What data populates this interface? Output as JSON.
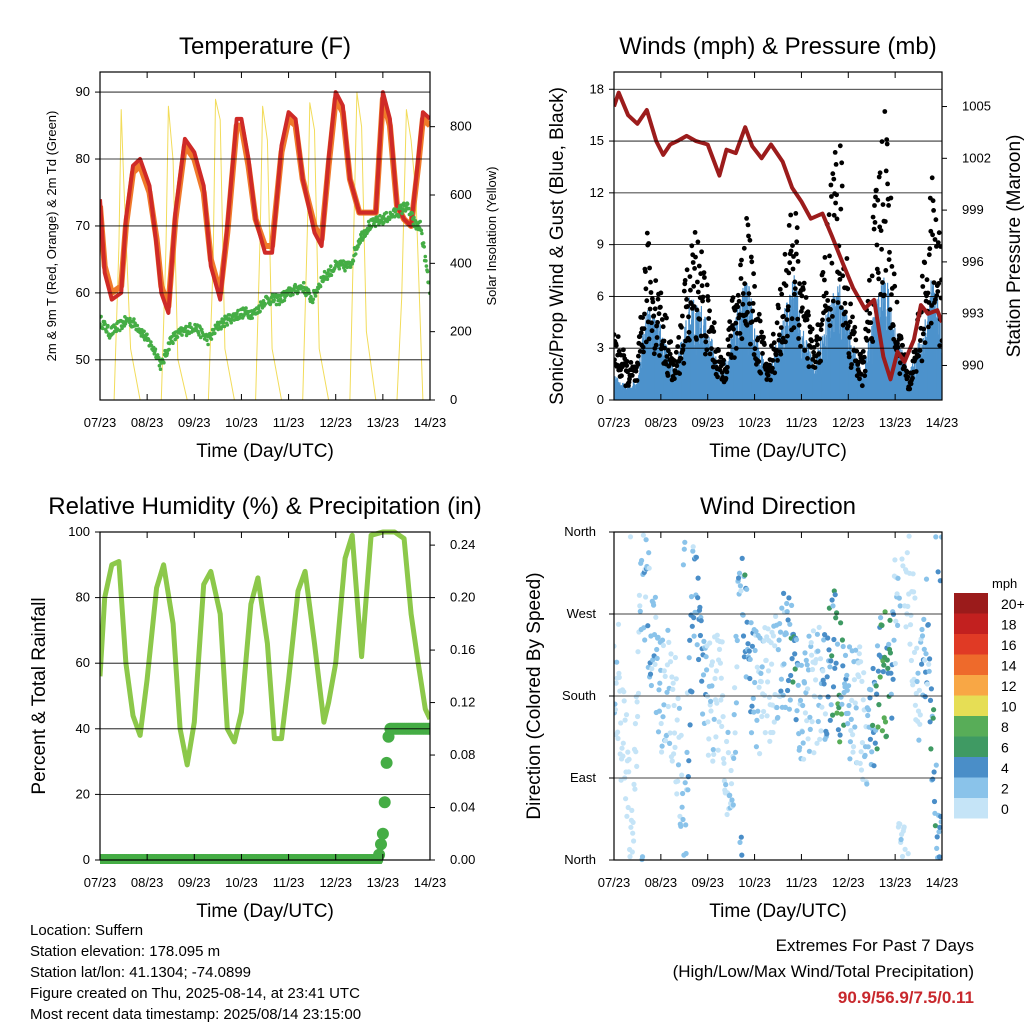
{
  "x_ticks": [
    "07/23",
    "08/23",
    "09/23",
    "10/23",
    "11/23",
    "12/23",
    "13/23",
    "14/23"
  ],
  "x_label": "Time (Day/UTC)",
  "colors": {
    "temp_2m": "#cf2a27",
    "temp_9m": "#f07a2a",
    "dewpoint": "#45ad45",
    "solar": "#f2dc5a",
    "wind": "#4d92cc",
    "gust": "#000000",
    "pressure": "#9c1c1c",
    "rh": "#8cc84a",
    "precip": "#45ad45"
  },
  "panels": {
    "temperature": {
      "title": "Temperature (F)",
      "ylabel_left": "2m & 9m T (Red, Orange) & 2m Td (Green)",
      "ylabel_right": "Solar Insolation (Yellow)",
      "left_ticks": [
        "50",
        "60",
        "70",
        "80",
        "90"
      ],
      "right_ticks": [
        "0",
        "200",
        "400",
        "600",
        "800"
      ]
    },
    "winds": {
      "title": "Winds (mph) & Pressure (mb)",
      "ylabel_left": "Sonic/Prop Wind & Gust (Blue, Black)",
      "ylabel_right": "Station Pressure (Maroon)",
      "left_ticks": [
        "0",
        "3",
        "6",
        "9",
        "12",
        "15",
        "18"
      ],
      "right_ticks": [
        "990",
        "993",
        "996",
        "999",
        "1002",
        "1005"
      ]
    },
    "humidity": {
      "title": "Relative Humidity (%) & Precipitation (in)",
      "ylabel_left": "Percent & Total Rainfall",
      "left_ticks": [
        "0",
        "20",
        "40",
        "60",
        "80",
        "100"
      ],
      "right_ticks": [
        "0.00",
        "0.04",
        "0.08",
        "0.12",
        "0.16",
        "0.20",
        "0.24"
      ]
    },
    "direction": {
      "title": "Wind Direction",
      "ylabel_left": "Direction (Colored By Speed)",
      "left_ticks": [
        "North",
        "East",
        "South",
        "West",
        "North"
      ]
    }
  },
  "legend": {
    "unit": "mph",
    "labels": [
      "0",
      "2",
      "4",
      "6",
      "8",
      "10",
      "12",
      "14",
      "16",
      "18",
      "20+"
    ],
    "colors": [
      "#c5e4f7",
      "#8ac3ea",
      "#4a8ec8",
      "#3f9a63",
      "#58ad58",
      "#e6de55",
      "#f8a745",
      "#ee6a2b",
      "#e03a25",
      "#c2201f",
      "#9b1b1b"
    ]
  },
  "info": {
    "location": "Location: Suffern",
    "elevation": "Station elevation: 178.095 m",
    "latlon": "Station lat/lon: 41.1304; -74.0899",
    "created": "Figure created on Thu, 2025-08-14, at 23:41 UTC",
    "recent": "Most recent data timestamp: 2025/08/14 23:15:00"
  },
  "extremes": {
    "line1": "Extremes For Past 7 Days",
    "line2": "(High/Low/Max Wind/Total Precipitation)",
    "values": "90.9/56.9/7.5/0.11"
  },
  "chart_data": [
    {
      "type": "line",
      "title": "Temperature (F)",
      "xlabel": "Time (Day/UTC)",
      "ylabel": "2m & 9m T (Red, Orange) & 2m Td (Green)",
      "ylim": [
        44,
        93
      ],
      "y2label": "Solar Insolation (Yellow)",
      "y2lim": [
        0,
        960
      ],
      "x_range_days": [
        7,
        14
      ],
      "series": [
        {
          "name": "2m T",
          "axis": "left",
          "x": [
            7.0,
            7.1,
            7.25,
            7.45,
            7.55,
            7.7,
            7.85,
            8.05,
            8.2,
            8.3,
            8.45,
            8.6,
            8.8,
            9.0,
            9.2,
            9.35,
            9.55,
            9.7,
            9.9,
            10.0,
            10.15,
            10.3,
            10.5,
            10.65,
            10.85,
            11.0,
            11.15,
            11.3,
            11.55,
            11.7,
            11.85,
            12.0,
            12.15,
            12.3,
            12.5,
            12.65,
            12.85,
            13.0,
            13.15,
            13.3,
            13.45,
            13.6,
            13.75,
            13.85,
            14.0
          ],
          "values": [
            74,
            63,
            59,
            60,
            71,
            79,
            80,
            76,
            67,
            60,
            57,
            72,
            83,
            81,
            76,
            64,
            59,
            70,
            86,
            86,
            80,
            71,
            66,
            66,
            82,
            87,
            86,
            77,
            69,
            67,
            80,
            90,
            88,
            77,
            72,
            72,
            72,
            90,
            86,
            73,
            71,
            70,
            80,
            87,
            86
          ]
        },
        {
          "name": "9m T",
          "axis": "left",
          "x": [
            7.0,
            7.1,
            7.25,
            7.45,
            7.55,
            7.7,
            7.85,
            8.05,
            8.2,
            8.3,
            8.45,
            8.6,
            8.8,
            9.0,
            9.2,
            9.35,
            9.55,
            9.7,
            9.9,
            10.0,
            10.15,
            10.3,
            10.5,
            10.65,
            10.85,
            11.0,
            11.15,
            11.3,
            11.55,
            11.7,
            11.85,
            12.0,
            12.15,
            12.3,
            12.5,
            12.65,
            12.85,
            13.0,
            13.15,
            13.3,
            13.45,
            13.6,
            13.75,
            13.85,
            14.0
          ],
          "values": [
            73,
            64,
            60,
            61,
            70,
            78,
            79,
            75,
            68,
            61,
            58,
            71,
            82,
            80,
            75,
            65,
            60,
            69,
            85,
            85,
            79,
            71,
            67,
            67,
            81,
            86,
            85,
            77,
            70,
            68,
            79,
            89,
            87,
            77,
            72,
            72,
            72,
            89,
            85,
            73,
            71,
            70,
            79,
            86,
            85
          ]
        },
        {
          "name": "2m Td",
          "axis": "left",
          "x": [
            7.0,
            7.2,
            7.4,
            7.6,
            7.8,
            8.0,
            8.2,
            8.3,
            8.5,
            8.7,
            9.0,
            9.3,
            9.5,
            9.7,
            10.0,
            10.3,
            10.5,
            10.8,
            11.0,
            11.3,
            11.5,
            11.7,
            12.0,
            12.3,
            12.5,
            12.7,
            13.0,
            13.3,
            13.5,
            13.7,
            13.8,
            14.0
          ],
          "values": [
            56,
            54,
            55,
            56,
            55,
            53,
            51,
            49,
            53,
            54,
            55,
            53,
            55,
            56,
            57,
            57,
            59,
            59,
            60,
            61,
            59,
            62,
            64,
            64,
            68,
            70,
            71,
            72,
            73,
            70,
            70,
            60
          ]
        },
        {
          "name": "Solar",
          "axis": "right",
          "x": [
            7.0,
            7.3,
            7.4,
            7.45,
            7.5,
            7.65,
            7.85,
            8.3,
            8.4,
            8.45,
            8.55,
            8.65,
            8.85,
            9.3,
            9.4,
            9.45,
            9.55,
            9.65,
            9.85,
            10.3,
            10.4,
            10.45,
            10.55,
            10.65,
            10.85,
            11.3,
            11.4,
            11.45,
            11.55,
            11.65,
            11.85,
            12.3,
            12.4,
            12.45,
            12.55,
            12.65,
            12.85,
            13.3,
            13.4,
            13.5,
            13.6,
            13.7,
            13.85,
            14.0
          ],
          "values": [
            0,
            0,
            450,
            850,
            650,
            150,
            0,
            0,
            450,
            860,
            700,
            120,
            0,
            0,
            400,
            880,
            820,
            150,
            0,
            0,
            500,
            860,
            760,
            150,
            0,
            0,
            500,
            870,
            790,
            150,
            0,
            0,
            600,
            900,
            800,
            200,
            0,
            0,
            300,
            850,
            760,
            600,
            0,
            0
          ]
        }
      ]
    },
    {
      "type": "scatter",
      "title": "Winds (mph) & Pressure (mb)",
      "xlabel": "Time (Day/UTC)",
      "ylabel": "Sonic/Prop Wind & Gust (Blue, Black)",
      "ylim": [
        0,
        19
      ],
      "y2label": "Station Pressure (Maroon)",
      "y2lim": [
        988,
        1007
      ],
      "series": [
        {
          "name": "Sonic/Prop Wind",
          "axis": "left",
          "x": [
            7.0,
            7.3,
            7.5,
            7.7,
            8.0,
            8.3,
            8.6,
            8.8,
            9.0,
            9.3,
            9.7,
            9.85,
            10.0,
            10.3,
            10.7,
            10.85,
            11.0,
            11.3,
            11.6,
            11.8,
            12.0,
            12.3,
            12.6,
            12.8,
            13.0,
            13.3,
            13.6,
            13.8,
            14.0
          ],
          "values": [
            1,
            0.5,
            1,
            4,
            3,
            1,
            4,
            4,
            3,
            1,
            4,
            5,
            3,
            1,
            4,
            5,
            3,
            1.5,
            4,
            5,
            3,
            1,
            4,
            5,
            3,
            1,
            3,
            5,
            3
          ]
        },
        {
          "name": "Gust",
          "axis": "left",
          "x": [
            7.0,
            7.3,
            7.5,
            7.7,
            8.0,
            8.3,
            8.6,
            8.8,
            9.0,
            9.3,
            9.7,
            9.85,
            10.0,
            10.3,
            10.7,
            10.85,
            11.0,
            11.3,
            11.6,
            11.8,
            12.0,
            12.3,
            12.6,
            12.8,
            13.0,
            13.3,
            13.6,
            13.8,
            14.0
          ],
          "values": [
            4,
            2,
            2,
            9,
            6,
            2,
            8,
            10,
            6,
            2,
            8,
            11,
            6,
            2,
            9,
            11,
            7,
            3,
            11,
            16,
            6,
            2,
            12,
            17,
            6,
            1,
            7,
            12,
            8
          ]
        },
        {
          "name": "Station Pressure",
          "axis": "right",
          "x": [
            7.0,
            7.1,
            7.3,
            7.5,
            7.7,
            7.9,
            8.05,
            8.2,
            8.35,
            8.55,
            8.75,
            9.0,
            9.25,
            9.4,
            9.6,
            9.8,
            9.95,
            10.15,
            10.35,
            10.6,
            10.8,
            11.0,
            11.2,
            11.45,
            11.65,
            11.9,
            12.1,
            12.35,
            12.55,
            12.75,
            12.9,
            13.05,
            13.2,
            13.4,
            13.55,
            13.7,
            13.9,
            14.0
          ],
          "values": [
            1005,
            1005.8,
            1004.5,
            1004,
            1004.8,
            1003,
            1002.2,
            1002.8,
            1003,
            1003.3,
            1003,
            1002.8,
            1001,
            1002.5,
            1002.3,
            1003.8,
            1002.7,
            1002,
            1002.8,
            1001.8,
            1000.3,
            999.5,
            998.5,
            998.8,
            997.5,
            995.8,
            994.5,
            993.3,
            993.8,
            990.5,
            989.2,
            990.8,
            990.2,
            991.5,
            993.5,
            993,
            993.2,
            992.5
          ]
        }
      ]
    },
    {
      "type": "line",
      "title": "Relative Humidity (%) & Precipitation (in)",
      "xlabel": "Time (Day/UTC)",
      "ylabel": "Percent & Total Rainfall",
      "ylim": [
        0,
        100
      ],
      "y2lim": [
        0,
        0.25
      ],
      "series": [
        {
          "name": "Relative Humidity",
          "axis": "left",
          "x": [
            7.0,
            7.1,
            7.25,
            7.4,
            7.55,
            7.7,
            7.85,
            8.0,
            8.2,
            8.35,
            8.55,
            8.7,
            8.85,
            9.0,
            9.2,
            9.35,
            9.55,
            9.7,
            9.85,
            10.0,
            10.2,
            10.35,
            10.55,
            10.7,
            10.85,
            11.0,
            11.2,
            11.35,
            11.55,
            11.75,
            11.85,
            12.0,
            12.2,
            12.35,
            12.55,
            12.75,
            13.0,
            13.25,
            13.45,
            13.6,
            13.75,
            13.9,
            14.0
          ],
          "values": [
            56,
            80,
            90,
            91,
            60,
            44,
            38,
            55,
            83,
            90,
            72,
            40,
            29,
            42,
            84,
            88,
            75,
            40,
            36,
            45,
            78,
            86,
            66,
            37,
            37,
            55,
            82,
            88,
            66,
            42,
            48,
            60,
            92,
            99,
            62,
            99,
            100,
            100,
            98,
            75,
            60,
            46,
            43
          ]
        },
        {
          "name": "Total Precipitation",
          "axis": "right",
          "x": [
            7.0,
            12.9,
            13.0,
            13.05,
            13.1,
            13.15,
            14.0
          ],
          "values": [
            0,
            0,
            0.02,
            0.05,
            0.09,
            0.1,
            0.1
          ]
        }
      ]
    },
    {
      "type": "scatter",
      "title": "Wind Direction",
      "xlabel": "Time (Day/UTC)",
      "ylabel": "Direction (Colored By Speed)",
      "ylim": [
        0,
        360
      ],
      "color_legend": {
        "unit": "mph",
        "labels": [
          "0",
          "2",
          "4",
          "6",
          "8",
          "10",
          "12",
          "14",
          "16",
          "18",
          "20+"
        ]
      },
      "series": [
        {
          "name": "Direction",
          "x": [
            7.1,
            7.2,
            7.4,
            7.6,
            7.8,
            8.0,
            8.1,
            8.3,
            8.5,
            8.7,
            8.9,
            9.1,
            9.3,
            9.5,
            9.7,
            9.9,
            10.1,
            10.3,
            10.5,
            10.7,
            10.9,
            11.1,
            11.3,
            11.5,
            11.7,
            11.9,
            12.1,
            12.3,
            12.5,
            12.7,
            12.9,
            13.1,
            13.3,
            13.5,
            13.7,
            13.9
          ],
          "values": [
            190,
            120,
            40,
            320,
            250,
            185,
            190,
            170,
            20,
            300,
            190,
            175,
            200,
            30,
            330,
            195,
            185,
            190,
            210,
            240,
            180,
            170,
            190,
            200,
            230,
            175,
            180,
            160,
            130,
            210,
            195,
            350,
            300,
            190,
            250,
            10
          ]
        }
      ]
    }
  ]
}
